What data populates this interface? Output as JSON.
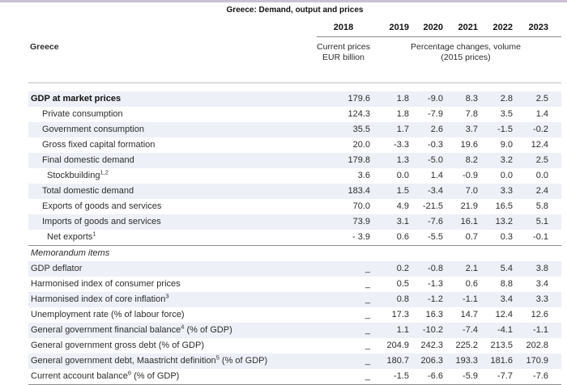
{
  "topbar_color": "#cbc0d4",
  "header": {
    "title": "Greece: Demand, output and prices",
    "region_label": "Greece",
    "years": [
      "2018",
      "2019",
      "2020",
      "2021",
      "2022",
      "2023"
    ],
    "col2018_subhead_line1": "Current prices",
    "col2018_subhead_line2": "EUR billion",
    "pct_subhead_line1": "Percentage changes, volume",
    "pct_subhead_line2": "(2015 prices)"
  },
  "colors": {
    "stripe": "#edf0f6",
    "rule_dark": "#8c8c8c",
    "rule_light": "#c2c2c2"
  },
  "chart_data": {
    "type": "table",
    "title": "Greece: Demand, output and prices",
    "columns": [
      "2018",
      "2019",
      "2020",
      "2021",
      "2022",
      "2023"
    ],
    "column_units": [
      "Current prices EUR billion",
      "Percentage changes, volume (2015 prices)"
    ]
  },
  "table": {
    "rows": [
      {
        "label": "GDP at market prices",
        "sup": "",
        "label_after": "",
        "indent": 0,
        "bold": true,
        "italic": false,
        "shaded": true,
        "divider_above": false,
        "values": [
          "179.6",
          "1.8",
          "-9.0",
          "8.3",
          "2.8",
          "2.5"
        ]
      },
      {
        "label": "Private consumption",
        "sup": "",
        "label_after": "",
        "indent": 1,
        "bold": false,
        "italic": false,
        "shaded": false,
        "divider_above": false,
        "values": [
          "124.3",
          "1.8",
          "-7.9",
          "7.8",
          "3.5",
          "1.4"
        ]
      },
      {
        "label": "Government consumption",
        "sup": "",
        "label_after": "",
        "indent": 1,
        "bold": false,
        "italic": false,
        "shaded": true,
        "divider_above": false,
        "values": [
          "35.5",
          "1.7",
          "2.6",
          "3.7",
          "-1.5",
          "-0.2"
        ]
      },
      {
        "label": "Gross fixed capital formation",
        "sup": "",
        "label_after": "",
        "indent": 1,
        "bold": false,
        "italic": false,
        "shaded": false,
        "divider_above": false,
        "values": [
          "20.0",
          "-3.3",
          "-0.3",
          "19.6",
          "9.0",
          "12.4"
        ]
      },
      {
        "label": "Final domestic demand",
        "sup": "",
        "label_after": "",
        "indent": 1,
        "bold": false,
        "italic": false,
        "shaded": true,
        "divider_above": false,
        "values": [
          "179.8",
          "1.3",
          "-5.0",
          "8.2",
          "3.2",
          "2.5"
        ]
      },
      {
        "label": "Stockbuilding",
        "sup": "1,2",
        "label_after": "",
        "indent": 2,
        "bold": false,
        "italic": false,
        "shaded": false,
        "divider_above": false,
        "values": [
          "3.6",
          "0.0",
          "1.4",
          "-0.9",
          "0.0",
          "0.0"
        ]
      },
      {
        "label": "Total domestic demand",
        "sup": "",
        "label_after": "",
        "indent": 1,
        "bold": false,
        "italic": false,
        "shaded": true,
        "divider_above": false,
        "values": [
          "183.4",
          "1.5",
          "-3.4",
          "7.0",
          "3.3",
          "2.4"
        ]
      },
      {
        "label": "Exports of goods and services",
        "sup": "",
        "label_after": "",
        "indent": 1,
        "bold": false,
        "italic": false,
        "shaded": false,
        "divider_above": false,
        "values": [
          "70.0",
          "4.9",
          "-21.5",
          "21.9",
          "16.5",
          "5.8"
        ]
      },
      {
        "label": "Imports of goods and services",
        "sup": "",
        "label_after": "",
        "indent": 1,
        "bold": false,
        "italic": false,
        "shaded": true,
        "divider_above": false,
        "values": [
          "73.9",
          "3.1",
          "-7.6",
          "16.1",
          "13.2",
          "5.1"
        ]
      },
      {
        "label": "Net exports",
        "sup": "1",
        "label_after": "",
        "indent": 2,
        "bold": false,
        "italic": false,
        "shaded": false,
        "divider_above": false,
        "values": [
          "- 3.9",
          "0.6",
          "-5.5",
          "0.7",
          "0.3",
          "-0.1"
        ]
      },
      {
        "label": "Memorandum items",
        "sup": "",
        "label_after": "",
        "indent": 0,
        "bold": false,
        "italic": true,
        "shaded": false,
        "divider_above": true,
        "values": [
          "",
          "",
          "",
          "",
          "",
          ""
        ]
      },
      {
        "label": "GDP deflator",
        "sup": "",
        "label_after": "",
        "indent": 0,
        "bold": false,
        "italic": false,
        "shaded": true,
        "divider_above": false,
        "values": [
          "_",
          "0.2",
          "-0.8",
          "2.1",
          "5.4",
          "3.8"
        ]
      },
      {
        "label": "Harmonised index of consumer prices",
        "sup": "",
        "label_after": "",
        "indent": 0,
        "bold": false,
        "italic": false,
        "shaded": false,
        "divider_above": false,
        "values": [
          "_",
          "0.5",
          "-1.3",
          "0.6",
          "8.8",
          "3.4"
        ]
      },
      {
        "label": "Harmonised index of core inflation",
        "sup": "3",
        "label_after": "",
        "indent": 0,
        "bold": false,
        "italic": false,
        "shaded": true,
        "divider_above": false,
        "values": [
          "_",
          "0.8",
          "-1.2",
          "-1.1",
          "3.4",
          "3.3"
        ]
      },
      {
        "label": "Unemployment rate (% of labour force)",
        "sup": "",
        "label_after": "",
        "indent": 0,
        "bold": false,
        "italic": false,
        "shaded": false,
        "divider_above": false,
        "values": [
          "_",
          "17.3",
          "16.3",
          "14.7",
          "12.4",
          "12.6"
        ]
      },
      {
        "label": "General government financial balance",
        "sup": "4",
        "label_after": " (% of GDP)",
        "indent": 0,
        "bold": false,
        "italic": false,
        "shaded": true,
        "divider_above": false,
        "values": [
          "_",
          "1.1",
          "-10.2",
          "-7.4",
          "-4.1",
          "-1.1"
        ]
      },
      {
        "label": "General government gross debt (% of GDP)",
        "sup": "",
        "label_after": "",
        "indent": 0,
        "bold": false,
        "italic": false,
        "shaded": false,
        "divider_above": false,
        "values": [
          "_",
          "204.9",
          "242.3",
          "225.2",
          "213.5",
          "202.8"
        ]
      },
      {
        "label": "General government debt, Maastricht definition",
        "sup": "5",
        "label_after": " (% of GDP)",
        "indent": 0,
        "bold": false,
        "italic": false,
        "shaded": true,
        "divider_above": false,
        "values": [
          "_",
          "180.7",
          "206.3",
          "193.3",
          "181.6",
          "170.9"
        ]
      },
      {
        "label": "Current account balance",
        "sup": "6",
        "label_after": " (% of GDP)",
        "indent": 0,
        "bold": false,
        "italic": false,
        "shaded": false,
        "divider_above": false,
        "values": [
          "_",
          "-1.5",
          "-6.6",
          "-5.9",
          "-7.7",
          "-7.6"
        ]
      }
    ]
  }
}
